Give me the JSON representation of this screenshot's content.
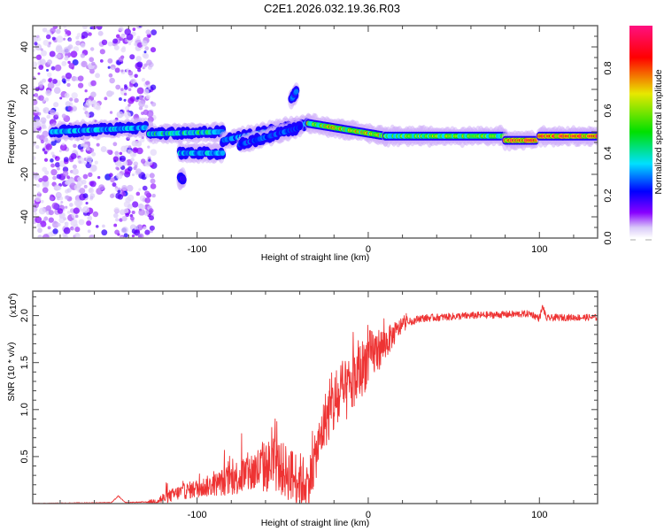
{
  "title": "C2E1.2026.032.19.36.R03",
  "chart_data": [
    {
      "type": "heatmap",
      "name": "spectrogram",
      "title": "C2E1.2026.032.19.36.R03",
      "xlabel": "Height of straight line (km)",
      "ylabel": "Frequency (Hz)",
      "xlim": [
        -196,
        134
      ],
      "ylim": [
        -50,
        50
      ],
      "xticks": [
        -100,
        0,
        100
      ],
      "xtick_labels": [
        "-100",
        "0",
        "100"
      ],
      "yticks": [
        -40,
        -20,
        0,
        20,
        40
      ],
      "ytick_labels": [
        "-40",
        "-20",
        "0",
        "20",
        "40"
      ],
      "colorbar": {
        "label": "Normalized spectral amplitude",
        "range": [
          0,
          1
        ],
        "ticks": [
          0.0,
          0.2,
          0.4,
          0.6,
          0.8
        ],
        "tick_labels": [
          "0.0",
          "0.2",
          "0.4",
          "0.6",
          "0.8"
        ],
        "colormap": [
          "#ffffff",
          "#d8c8f8",
          "#8800ff",
          "#0000ff",
          "#00e0ff",
          "#00e000",
          "#e8e800",
          "#ff0000",
          "#ff1080"
        ]
      },
      "ridges": [
        {
          "x": [
            -185,
            -130
          ],
          "f": [
            0,
            2
          ],
          "amp": 0.45
        },
        {
          "x": [
            -128,
            -85
          ],
          "f": [
            -1,
            0
          ],
          "amp": 0.5
        },
        {
          "x": [
            -110,
            -85
          ],
          "f": [
            -10,
            -10
          ],
          "amp": 0.45
        },
        {
          "x": [
            -85,
            -35
          ],
          "f": [
            -4,
            4
          ],
          "amp": 0.4
        },
        {
          "x": [
            -75,
            -40
          ],
          "f": [
            -6,
            2
          ],
          "amp": 0.35
        },
        {
          "x": [
            -35,
            10
          ],
          "f": [
            4,
            -2
          ],
          "amp": 0.7
        },
        {
          "x": [
            10,
            80
          ],
          "f": [
            -2,
            -2
          ],
          "amp": 0.62
        },
        {
          "x": [
            80,
            98
          ],
          "f": [
            -4,
            -4
          ],
          "amp": 0.9
        },
        {
          "x": [
            100,
            134
          ],
          "f": [
            -2,
            -2
          ],
          "amp": 0.9
        },
        {
          "x": [
            -110,
            -108
          ],
          "f": [
            -22,
            -22
          ],
          "amp": 0.3
        },
        {
          "x": [
            -45,
            -42
          ],
          "f": [
            15,
            19
          ],
          "amp": 0.35
        }
      ],
      "noise_band": {
        "x": [
          -196,
          -125
        ],
        "amp": 0.15
      }
    },
    {
      "type": "line",
      "name": "snr",
      "xlabel": "Height of straight line (km)",
      "ylabel": "SNR (10 * v/v)",
      "y_scale_label": "(x10",
      "y_scale_exp": "4",
      "y_scale_close": ")",
      "xlim": [
        -196,
        134
      ],
      "ylim": [
        0,
        2.26
      ],
      "xticks": [
        -100,
        0,
        100
      ],
      "xtick_labels": [
        "-100",
        "0",
        "100"
      ],
      "yticks": [
        0.5,
        1.0,
        1.5,
        2.0
      ],
      "ytick_labels": [
        "0.5",
        "1.0",
        "1.5",
        "2.0"
      ],
      "color": "#ee3333",
      "trend": {
        "x": [
          -196,
          -150,
          -146,
          -142,
          -125,
          -110,
          -90,
          -70,
          -55,
          -45,
          -35,
          -25,
          -20,
          -10,
          0,
          10,
          20,
          30,
          60,
          95,
          100,
          102,
          104,
          110,
          134
        ],
        "y": [
          0.0,
          0.01,
          0.08,
          0.01,
          0.02,
          0.12,
          0.2,
          0.32,
          0.42,
          0.3,
          0.2,
          0.9,
          1.05,
          1.25,
          1.55,
          1.7,
          1.9,
          1.97,
          2.0,
          2.02,
          1.97,
          2.1,
          1.97,
          1.98,
          1.98
        ]
      },
      "noise_amplitude": {
        "x": [
          -196,
          -130,
          -120,
          -90,
          -60,
          -40,
          -30,
          -20,
          0,
          15,
          25,
          134
        ],
        "y": [
          0.005,
          0.005,
          0.06,
          0.12,
          0.28,
          0.3,
          0.25,
          0.35,
          0.3,
          0.12,
          0.04,
          0.035
        ]
      }
    }
  ]
}
